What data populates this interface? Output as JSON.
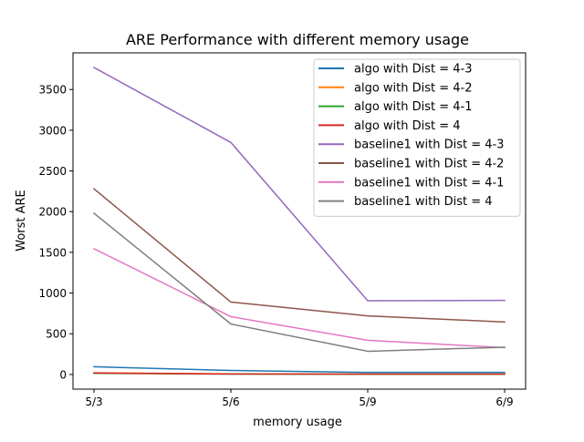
{
  "chart_data": {
    "type": "line",
    "title": "ARE Performance with different memory usage",
    "xlabel": "memory usage",
    "ylabel": "Worst ARE",
    "categories": [
      "5/3",
      "5/6",
      "5/9",
      "6/9"
    ],
    "ylim": [
      -180,
      3950
    ],
    "yticks": [
      0,
      500,
      1000,
      1500,
      2000,
      2500,
      3000,
      3500
    ],
    "grid": false,
    "legend_position": "top-right",
    "series": [
      {
        "name": "algo with Dist = 4-3",
        "color": "#1f77b4",
        "values": [
          95,
          50,
          25,
          25
        ]
      },
      {
        "name": "algo with Dist = 4-2",
        "color": "#ff7f0e",
        "values": [
          20,
          8,
          5,
          5
        ]
      },
      {
        "name": "algo with Dist = 4-1",
        "color": "#2ca02c",
        "values": [
          15,
          5,
          3,
          3
        ]
      },
      {
        "name": "algo with Dist = 4",
        "color": "#d62728",
        "values": [
          18,
          6,
          4,
          4
        ]
      },
      {
        "name": "baseline1 with Dist = 4-3",
        "color": "#9467bd",
        "values": [
          3770,
          2850,
          905,
          910
        ]
      },
      {
        "name": "baseline1 with Dist = 4-2",
        "color": "#8c564b",
        "values": [
          2280,
          890,
          720,
          645
        ]
      },
      {
        "name": "baseline1 with Dist = 4-1",
        "color": "#e377c2",
        "values": [
          1545,
          710,
          420,
          330
        ]
      },
      {
        "name": "baseline1 with Dist = 4",
        "color": "#7f7f7f",
        "values": [
          1980,
          620,
          285,
          335
        ]
      }
    ]
  }
}
